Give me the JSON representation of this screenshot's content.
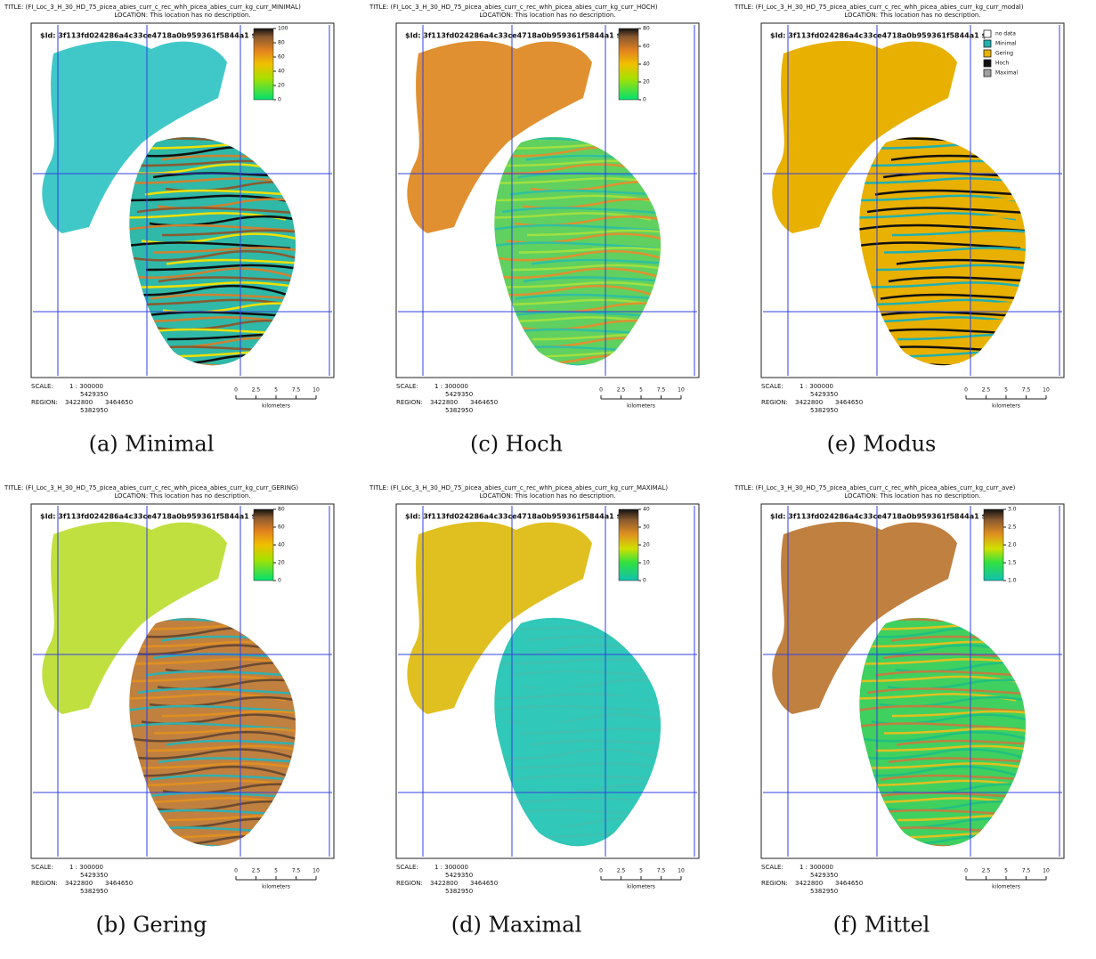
{
  "panels": [
    {
      "title": "TITLE: (FI_Loc_3_H_30_HD_75_picea_abies_curr_c_rec_whh_picea_abies_curr_kg_curr_MINIMAL)",
      "location": "LOCATION: This location has no description.",
      "id": "$Id: 3f113fd024286a4c33ce4718a0b959361f5844a1 $",
      "legend": [
        "100",
        "80",
        "60",
        "40",
        "20",
        "0"
      ],
      "scale_label": "SCALE:",
      "scale": "1 : 300000",
      "region_label": "REGION:",
      "region": {
        "north": "5429350",
        "west": "3422800",
        "east": "3464650",
        "south": "5382950"
      },
      "km_ticks": [
        "0",
        "2.5",
        "5",
        "7.5",
        "10"
      ],
      "km_label": "kilometers",
      "caption": "(a) Minimal"
    },
    {
      "title": "TITLE: (FI_Loc_3_H_30_HD_75_picea_abies_curr_c_rec_whh_picea_abies_curr_kg_curr_HOCH)",
      "location": "LOCATION: This location has no description.",
      "id": "$Id: 3f113fd024286a4c33ce4718a0b959361f5844a1 $",
      "legend": [
        "80",
        "60",
        "40",
        "20",
        "0"
      ],
      "scale_label": "SCALE:",
      "scale": "1 : 300000",
      "region_label": "REGION:",
      "region": {
        "north": "5429350",
        "west": "3422800",
        "east": "3464650",
        "south": "5382950"
      },
      "km_ticks": [
        "0",
        "2.5",
        "5",
        "7.5",
        "10"
      ],
      "km_label": "kilometers",
      "caption": "(c) Hoch"
    },
    {
      "title": "TITLE: (FI_Loc_3_H_30_HD_75_picea_abies_curr_c_rec_whh_picea_abies_curr_kg_curr_modal)",
      "location": "LOCATION: This location has no description.",
      "id": "$Id: 3f113fd024286a4c33ce4718a0b959361f5844a1 $",
      "legend": [
        "no data",
        "Minimal",
        "Gering",
        "Hoch",
        "Maximal"
      ],
      "scale_label": "SCALE:",
      "scale": "1 : 300000",
      "region_label": "REGION:",
      "region": {
        "north": "5429350",
        "west": "3422800",
        "east": "3464650",
        "south": "5382950"
      },
      "km_ticks": [
        "0",
        "2.5",
        "5",
        "7.5",
        "10"
      ],
      "km_label": "kilometers",
      "caption": "(e) Modus"
    },
    {
      "title": "TITLE: (FI_Loc_3_H_30_HD_75_picea_abies_curr_c_rec_whh_picea_abies_curr_kg_curr_GERING)",
      "location": "LOCATION: This location has no description.",
      "id": "$Id: 3f113fd024286a4c33ce4718a0b959361f5844a1 $",
      "legend": [
        "80",
        "60",
        "40",
        "20",
        "0"
      ],
      "scale_label": "SCALE:",
      "scale": "1 : 300000",
      "region_label": "REGION:",
      "region": {
        "north": "5429350",
        "west": "3422800",
        "east": "3464650",
        "south": "5382950"
      },
      "km_ticks": [
        "0",
        "2.5",
        "5",
        "7.5",
        "10"
      ],
      "km_label": "kilometers",
      "caption": "(b) Gering"
    },
    {
      "title": "TITLE: (FI_Loc_3_H_30_HD_75_picea_abies_curr_c_rec_whh_picea_abies_curr_kg_curr_MAXIMAL)",
      "location": "LOCATION: This location has no description.",
      "id": "$Id: 3f113fd024286a4c33ce4718a0b959361f5844a1 $",
      "legend": [
        "40",
        "30",
        "20",
        "10",
        "0"
      ],
      "scale_label": "SCALE:",
      "scale": "1 : 300000",
      "region_label": "REGION:",
      "region": {
        "north": "5429350",
        "west": "3422800",
        "east": "3464650",
        "south": "5382950"
      },
      "km_ticks": [
        "0",
        "2.5",
        "5",
        "7.5",
        "10"
      ],
      "km_label": "kilometers",
      "caption": "(d) Maximal"
    },
    {
      "title": "TITLE: (FI_Loc_3_H_30_HD_75_picea_abies_curr_c_rec_whh_picea_abies_curr_kg_curr_ave)",
      "location": "LOCATION: This location has no description.",
      "id": "$Id: 3f113fd024286a4c33ce4718a0b959361f5844a1 $",
      "legend": [
        "3.0",
        "2.5",
        "2.0",
        "1.5",
        "1.0"
      ],
      "scale_label": "SCALE:",
      "scale": "1 : 300000",
      "region_label": "REGION:",
      "region": {
        "north": "5429350",
        "west": "3422800",
        "east": "3464650",
        "south": "5382950"
      },
      "km_ticks": [
        "0",
        "2.5",
        "5",
        "7.5",
        "10"
      ],
      "km_label": "kilometers",
      "caption": "(f) Mittel"
    }
  ]
}
